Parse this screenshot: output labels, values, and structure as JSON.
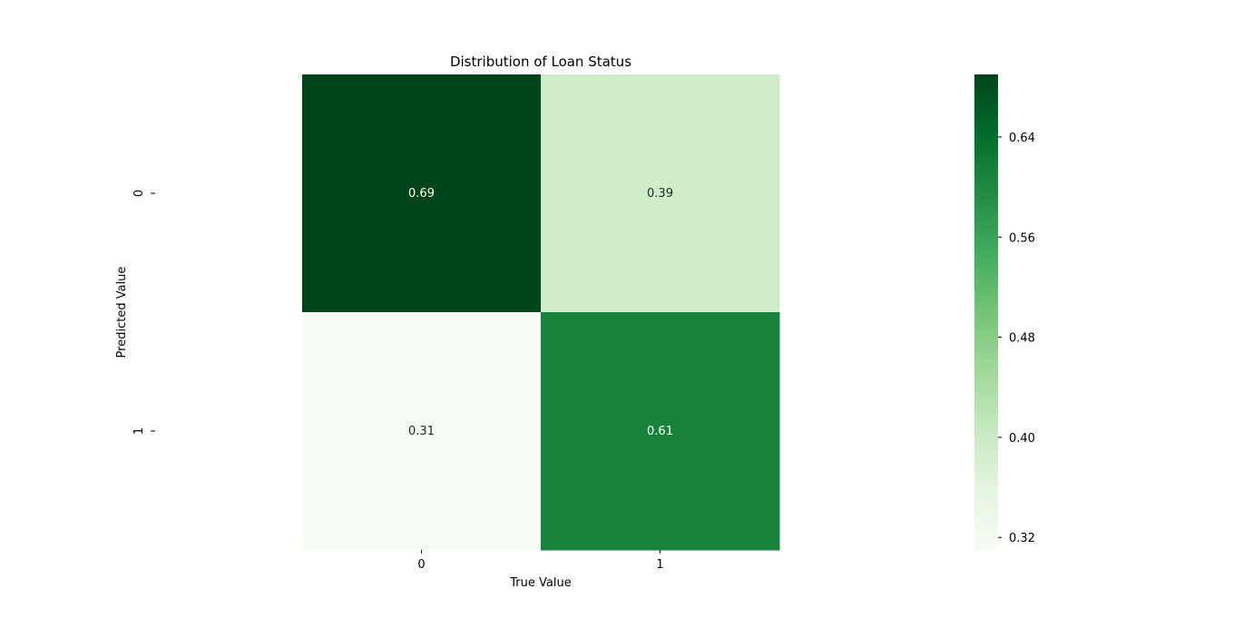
{
  "chart_data": {
    "type": "heatmap",
    "title": "Distribution of Loan Status",
    "xlabel": "True Value",
    "ylabel": "Predicted Value",
    "x_categories": [
      "0",
      "1"
    ],
    "y_categories": [
      "0",
      "1"
    ],
    "values": [
      [
        0.69,
        0.39
      ],
      [
        0.31,
        0.61
      ]
    ],
    "annotations": [
      [
        "0.69",
        "0.39"
      ],
      [
        "0.31",
        "0.61"
      ]
    ],
    "colormap": "Greens",
    "colorbar": {
      "vmin": 0.31,
      "vmax": 0.69,
      "ticks": [
        0.32,
        0.4,
        0.48,
        0.56,
        0.64
      ],
      "tick_labels": [
        "0.32",
        "0.40",
        "0.48",
        "0.56",
        "0.64"
      ]
    },
    "colors": {
      "low": "#f7fcf5",
      "high": "#00441b"
    }
  }
}
